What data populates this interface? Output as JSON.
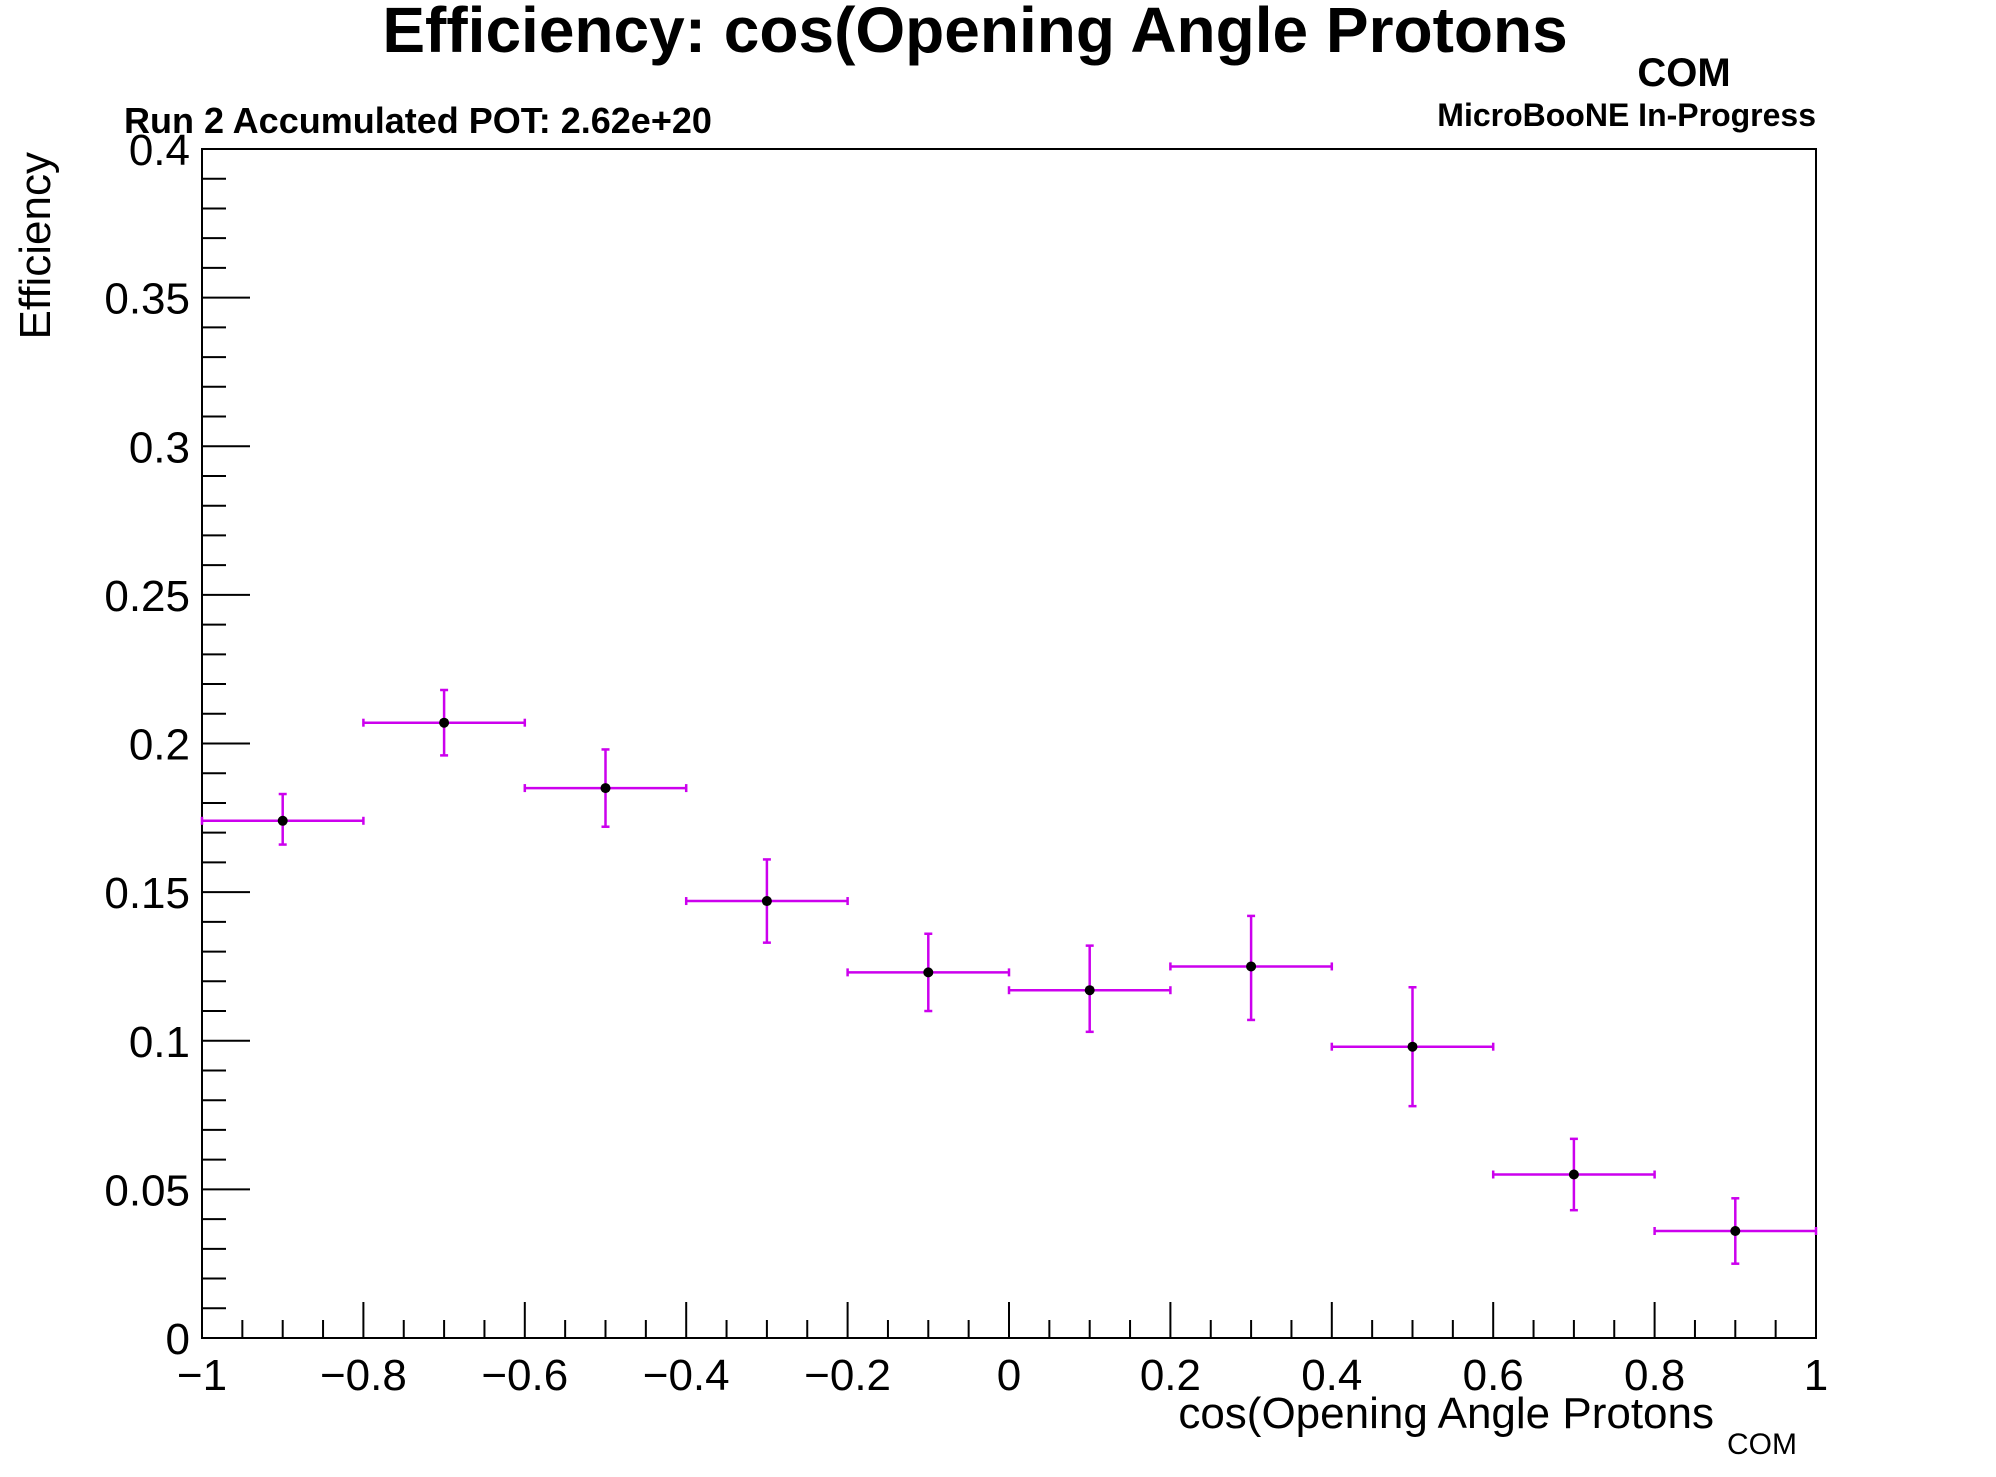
{
  "chart_data": {
    "type": "scatter",
    "title": "Efficiency: cos(Opening Angle Protons",
    "title_subscript": "COM",
    "annotation_left": "Run 2 Accumulated POT: 2.62e+20",
    "annotation_right": "MicroBooNE In-Progress",
    "xlabel": "cos(Opening Angle Protons",
    "xlabel_subscript": "COM",
    "ylabel": "Efficiency",
    "xlim": [
      -1,
      1
    ],
    "ylim": [
      0,
      0.4
    ],
    "grid": false,
    "legend": "none",
    "x_ticks": [
      -1,
      -0.8,
      -0.6,
      -0.4,
      -0.2,
      0,
      0.2,
      0.4,
      0.6,
      0.8,
      1
    ],
    "x_tick_labels": [
      "−1",
      "−0.8",
      "−0.6",
      "−0.4",
      "−0.2",
      "0",
      "0.2",
      "0.4",
      "0.6",
      "0.8",
      "1"
    ],
    "y_ticks": [
      0,
      0.05,
      0.1,
      0.15,
      0.2,
      0.25,
      0.3,
      0.35,
      0.4
    ],
    "y_tick_labels": [
      "0",
      "0.05",
      "0.1",
      "0.15",
      "0.2",
      "0.25",
      "0.3",
      "0.35",
      "0.4"
    ],
    "series": [
      {
        "x": [
          -0.9,
          -0.7,
          -0.5,
          -0.3,
          -0.1,
          0.1,
          0.3,
          0.5,
          0.7,
          0.9
        ],
        "x_err": [
          0.1,
          0.1,
          0.1,
          0.1,
          0.1,
          0.1,
          0.1,
          0.1,
          0.1,
          0.1
        ],
        "y": [
          0.174,
          0.207,
          0.185,
          0.147,
          0.123,
          0.117,
          0.125,
          0.098,
          0.055,
          0.036
        ],
        "y_err_low": [
          0.008,
          0.011,
          0.013,
          0.014,
          0.013,
          0.014,
          0.018,
          0.02,
          0.012,
          0.011
        ],
        "y_err_high": [
          0.009,
          0.011,
          0.013,
          0.014,
          0.013,
          0.015,
          0.017,
          0.02,
          0.012,
          0.011
        ],
        "marker_color": "#000000",
        "error_color": "#cc00ee"
      }
    ]
  }
}
